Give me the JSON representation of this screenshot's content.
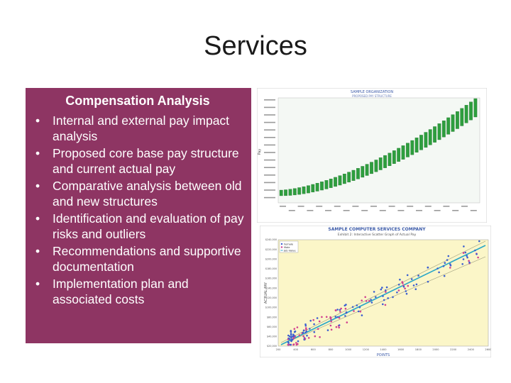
{
  "slide": {
    "title": "Services"
  },
  "panel": {
    "heading": "Compensation Analysis",
    "bullet_glyph": "•",
    "bullets": [
      "Internal and external pay impact analysis",
      "Proposed core base pay structure and current actual pay",
      "Comparative analysis between old and new structures",
      "Identification and evaluation of pay risks and outliers",
      "Recommendations and supportive documentation",
      "Implementation plan and associated costs"
    ],
    "background": "#8e3563"
  },
  "chart_top": {
    "title": "SAMPLE ORGANIZATION",
    "subtitle": "PROPOSED PAY STRUCTURE",
    "ylabel": "Pay",
    "color_bar": "#2e9e3e"
  },
  "chart_bottom": {
    "title": "SAMPLE COMPUTER SERVICES COMPANY",
    "subtitle": "Exhibit 2: Interactive Scatter Graph of Actual Pay",
    "ylabel": "ACTUAL PAY",
    "xlabel": "POINTS",
    "legend": [
      "Female",
      "Male",
      "Job Value"
    ],
    "x_ticks": [
      "200",
      "400",
      "600",
      "800",
      "1000",
      "1200",
      "1400",
      "1600",
      "1800",
      "2000",
      "2200",
      "2400",
      "2600"
    ],
    "y_ticks": [
      "$20,000",
      "$40,000",
      "$60,000",
      "$80,000",
      "$100,000",
      "$120,000",
      "$140,000",
      "$160,000",
      "$180,000",
      "$200,000",
      "$220,000",
      "$240,000"
    ],
    "background": "#fbf6c8"
  }
}
